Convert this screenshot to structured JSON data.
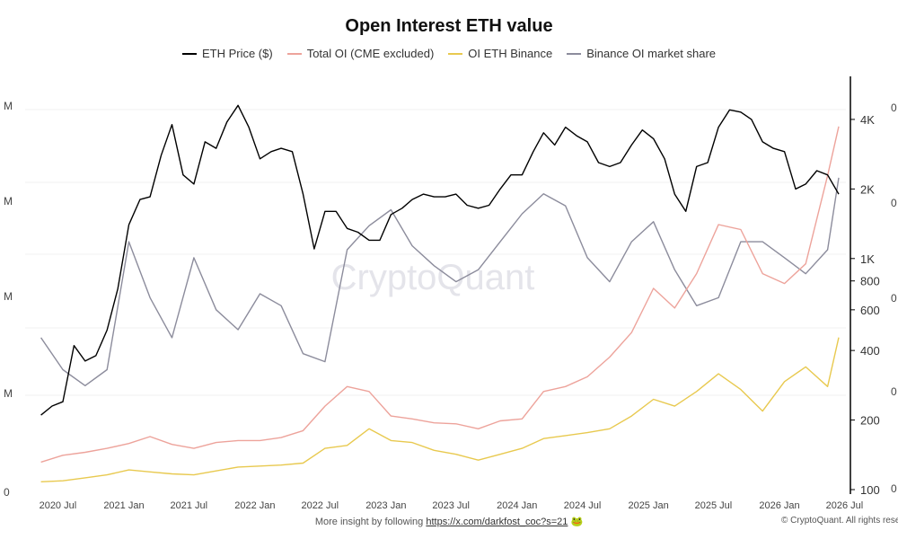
{
  "chart_data": {
    "type": "line",
    "title": "Open Interest ETH value",
    "legend_position": "top-center",
    "grid": true,
    "watermark": "CryptoQuant",
    "x_ticks": [
      "2020 Jul",
      "2021 Jan",
      "2021 Jul",
      "2022 Jan",
      "2022 Jul",
      "2023 Jan",
      "2023 Jul",
      "2024 Jan",
      "2024 Jul",
      "2025 Jan",
      "2025 Jul",
      "2026 Jan",
      "2026 Jul"
    ],
    "left_axis_ticks": [
      "M",
      "M",
      "M",
      "M",
      "0"
    ],
    "right_axis_ticks": [
      "4K",
      "2K",
      "1K",
      "800",
      "600",
      "400",
      "200",
      "100"
    ],
    "far_right_axis_ticks": [
      "0",
      "0",
      "0",
      "0",
      "0"
    ],
    "price_axis": {
      "scale": "log",
      "min": 100,
      "max": 5000
    },
    "series": [
      {
        "name": "ETH Price ($)",
        "color": "#000000",
        "axis": "price-log",
        "x": [
          "2020-05",
          "2020-06",
          "2020-07",
          "2020-08",
          "2020-09",
          "2020-10",
          "2020-11",
          "2020-12",
          "2021-01",
          "2021-02",
          "2021-03",
          "2021-04",
          "2021-05",
          "2021-06",
          "2021-07",
          "2021-08",
          "2021-09",
          "2021-10",
          "2021-11",
          "2021-12",
          "2022-01",
          "2022-02",
          "2022-03",
          "2022-04",
          "2022-05",
          "2022-06",
          "2022-07",
          "2022-08",
          "2022-09",
          "2022-10",
          "2022-11",
          "2022-12",
          "2023-01",
          "2023-02",
          "2023-03",
          "2023-04",
          "2023-05",
          "2023-06",
          "2023-07",
          "2023-08",
          "2023-09",
          "2023-10",
          "2023-11",
          "2023-12",
          "2024-01",
          "2024-02",
          "2024-03",
          "2024-04",
          "2024-05",
          "2024-06",
          "2024-07",
          "2024-08",
          "2024-09",
          "2024-10",
          "2024-11",
          "2024-12",
          "2025-01",
          "2025-02",
          "2025-03",
          "2025-04",
          "2025-05",
          "2025-06",
          "2025-07",
          "2025-08",
          "2025-09",
          "2025-10",
          "2025-11",
          "2025-12",
          "2026-01",
          "2026-02",
          "2026-03",
          "2026-04",
          "2026-05",
          "2026-06"
        ],
        "values": [
          210,
          230,
          240,
          420,
          360,
          380,
          490,
          740,
          1400,
          1800,
          1850,
          2800,
          3800,
          2300,
          2100,
          3200,
          3000,
          3900,
          4600,
          3700,
          2700,
          2900,
          3000,
          2900,
          1900,
          1100,
          1600,
          1600,
          1350,
          1300,
          1200,
          1200,
          1550,
          1650,
          1800,
          1900,
          1850,
          1850,
          1900,
          1700,
          1650,
          1700,
          2000,
          2300,
          2300,
          2900,
          3500,
          3100,
          3700,
          3400,
          3200,
          2600,
          2500,
          2600,
          3100,
          3600,
          3300,
          2700,
          1900,
          1600,
          2500,
          2600,
          3700,
          4400,
          4300,
          4000,
          3200,
          3000,
          2900,
          2000,
          2100,
          2400,
          2300,
          1900
        ]
      },
      {
        "name": "Total OI (CME excluded)",
        "color": "#eda39b",
        "axis": "left",
        "x": [
          "2020-05",
          "2020-07",
          "2020-09",
          "2020-11",
          "2021-01",
          "2021-03",
          "2021-05",
          "2021-07",
          "2021-09",
          "2021-11",
          "2022-01",
          "2022-03",
          "2022-05",
          "2022-07",
          "2022-09",
          "2022-11",
          "2023-01",
          "2023-03",
          "2023-05",
          "2023-07",
          "2023-09",
          "2023-11",
          "2024-01",
          "2024-03",
          "2024-05",
          "2024-07",
          "2024-09",
          "2024-11",
          "2025-01",
          "2025-03",
          "2025-05",
          "2025-07",
          "2025-09",
          "2025-11",
          "2026-01",
          "2026-03",
          "2026-05",
          "2026-06"
        ],
        "values": [
          0.28,
          0.35,
          0.38,
          0.42,
          0.47,
          0.54,
          0.46,
          0.42,
          0.48,
          0.5,
          0.5,
          0.53,
          0.6,
          0.85,
          1.05,
          1.0,
          0.75,
          0.72,
          0.68,
          0.67,
          0.62,
          0.7,
          0.72,
          1.0,
          1.05,
          1.15,
          1.35,
          1.6,
          2.05,
          1.85,
          2.2,
          2.7,
          2.65,
          2.2,
          2.1,
          2.3,
          3.2,
          3.7
        ]
      },
      {
        "name": "OI ETH Binance",
        "color": "#e8c94f",
        "axis": "left",
        "x": [
          "2020-05",
          "2020-07",
          "2020-09",
          "2020-11",
          "2021-01",
          "2021-03",
          "2021-05",
          "2021-07",
          "2021-09",
          "2021-11",
          "2022-01",
          "2022-03",
          "2022-05",
          "2022-07",
          "2022-09",
          "2022-11",
          "2023-01",
          "2023-03",
          "2023-05",
          "2023-07",
          "2023-09",
          "2023-11",
          "2024-01",
          "2024-03",
          "2024-05",
          "2024-07",
          "2024-09",
          "2024-11",
          "2025-01",
          "2025-03",
          "2025-05",
          "2025-07",
          "2025-09",
          "2025-11",
          "2026-01",
          "2026-03",
          "2026-05",
          "2026-06"
        ],
        "values": [
          0.08,
          0.09,
          0.12,
          0.15,
          0.2,
          0.18,
          0.16,
          0.15,
          0.19,
          0.23,
          0.24,
          0.25,
          0.27,
          0.42,
          0.45,
          0.62,
          0.5,
          0.48,
          0.4,
          0.36,
          0.3,
          0.36,
          0.42,
          0.52,
          0.55,
          0.58,
          0.62,
          0.75,
          0.92,
          0.85,
          1.0,
          1.18,
          1.02,
          0.8,
          1.1,
          1.25,
          1.05,
          1.55
        ]
      },
      {
        "name": "Binance OI market share",
        "color": "#8c8c9c",
        "axis": "far-right",
        "x": [
          "2020-05",
          "2020-07",
          "2020-09",
          "2020-11",
          "2021-01",
          "2021-03",
          "2021-05",
          "2021-07",
          "2021-09",
          "2021-11",
          "2022-01",
          "2022-03",
          "2022-05",
          "2022-07",
          "2022-09",
          "2022-11",
          "2023-01",
          "2023-03",
          "2023-05",
          "2023-07",
          "2023-09",
          "2023-11",
          "2024-01",
          "2024-03",
          "2024-05",
          "2024-07",
          "2024-09",
          "2024-11",
          "2025-01",
          "2025-03",
          "2025-05",
          "2025-07",
          "2025-09",
          "2025-11",
          "2026-01",
          "2026-03",
          "2026-05",
          "2026-06"
        ],
        "values": [
          0.38,
          0.3,
          0.26,
          0.3,
          0.62,
          0.48,
          0.38,
          0.58,
          0.45,
          0.4,
          0.49,
          0.46,
          0.34,
          0.32,
          0.6,
          0.66,
          0.7,
          0.61,
          0.56,
          0.52,
          0.55,
          0.62,
          0.69,
          0.74,
          0.71,
          0.58,
          0.52,
          0.62,
          0.67,
          0.55,
          0.46,
          0.48,
          0.62,
          0.62,
          0.58,
          0.54,
          0.6,
          0.78
        ]
      }
    ]
  },
  "footer": {
    "text": "More insight by following",
    "link": "https://x.com/darkfost_coc?s=21",
    "copyright": "© CryptoQuant. All rights reserved."
  }
}
